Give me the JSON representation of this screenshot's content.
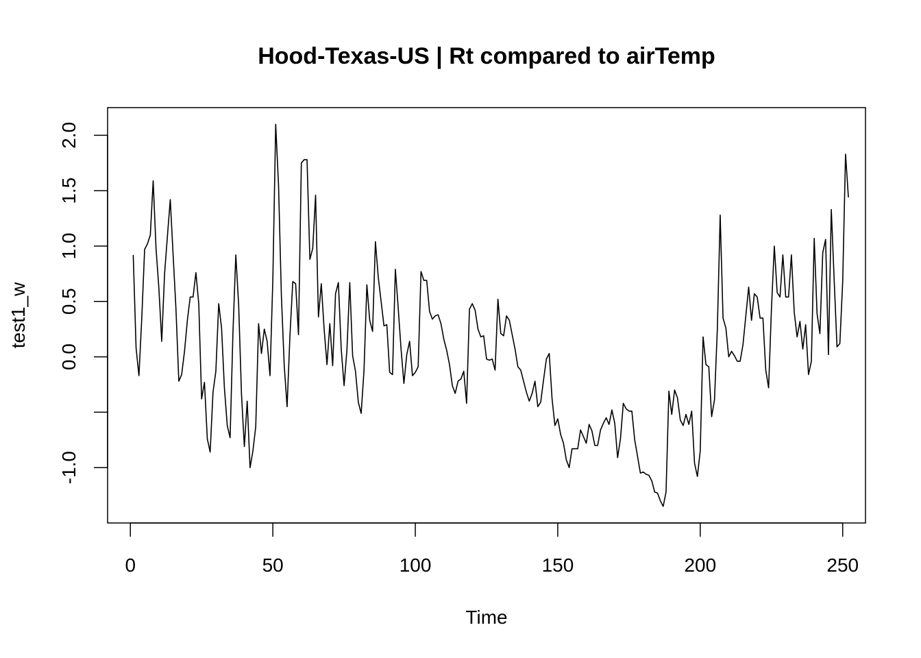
{
  "chart_data": {
    "type": "line",
    "title": "Hood-Texas-US | Rt compared to airTemp",
    "xlabel": "Time",
    "ylabel": "test1_w",
    "xlim": [
      -8,
      258
    ],
    "ylim": [
      -1.5,
      2.25
    ],
    "x_ticks": [
      0,
      50,
      100,
      150,
      200,
      250
    ],
    "x_tick_labels": [
      "0",
      "50",
      "100",
      "150",
      "200",
      "250"
    ],
    "y_ticks": [
      -1.0,
      -0.5,
      0.0,
      0.5,
      1.0,
      1.5,
      2.0
    ],
    "y_tick_labels": [
      "-1.0",
      "",
      "0.0",
      "0.5",
      "1.0",
      "1.5",
      "2.0"
    ],
    "grid": false,
    "legend": "none",
    "series": [
      {
        "color": "#000000",
        "x_start": 1,
        "values": [
          0.92,
          0.08,
          -0.17,
          0.35,
          0.97,
          1.02,
          1.1,
          1.59,
          0.98,
          0.62,
          0.14,
          0.75,
          1.09,
          1.42,
          0.92,
          0.43,
          -0.22,
          -0.16,
          0.05,
          0.33,
          0.54,
          0.54,
          0.76,
          0.48,
          -0.38,
          -0.23,
          -0.74,
          -0.86,
          -0.32,
          -0.13,
          0.48,
          0.26,
          -0.28,
          -0.62,
          -0.73,
          0.22,
          0.92,
          0.47,
          -0.34,
          -0.81,
          -0.4,
          -1.0,
          -0.85,
          -0.63,
          0.3,
          0.03,
          0.25,
          0.14,
          -0.17,
          0.7,
          2.1,
          1.55,
          0.55,
          -0.08,
          -0.45,
          0.19,
          0.68,
          0.66,
          0.2,
          1.75,
          1.78,
          1.78,
          0.88,
          0.98,
          1.46,
          0.36,
          0.66,
          0.25,
          -0.07,
          0.3,
          -0.08,
          0.57,
          0.67,
          0.07,
          -0.26,
          0.06,
          0.67,
          0.01,
          -0.13,
          -0.41,
          -0.51,
          -0.12,
          0.65,
          0.33,
          0.23,
          1.04,
          0.72,
          0.5,
          0.28,
          0.29,
          -0.14,
          -0.16,
          0.79,
          0.44,
          0.07,
          -0.24,
          0.02,
          0.14,
          -0.17,
          -0.14,
          -0.09,
          0.77,
          0.69,
          0.69,
          0.41,
          0.34,
          0.37,
          0.38,
          0.3,
          0.16,
          0.06,
          -0.07,
          -0.26,
          -0.33,
          -0.22,
          -0.2,
          -0.13,
          -0.42,
          0.43,
          0.48,
          0.42,
          0.25,
          0.18,
          0.19,
          -0.02,
          -0.03,
          -0.02,
          -0.12,
          0.52,
          0.21,
          0.19,
          0.37,
          0.33,
          0.2,
          0.07,
          -0.09,
          -0.12,
          -0.22,
          -0.32,
          -0.4,
          -0.33,
          -0.22,
          -0.45,
          -0.41,
          -0.21,
          -0.02,
          0.03,
          -0.38,
          -0.62,
          -0.56,
          -0.7,
          -0.78,
          -0.93,
          -1.0,
          -0.83,
          -0.83,
          -0.83,
          -0.66,
          -0.72,
          -0.78,
          -0.61,
          -0.67,
          -0.8,
          -0.8,
          -0.66,
          -0.6,
          -0.55,
          -0.61,
          -0.48,
          -0.6,
          -0.91,
          -0.74,
          -0.42,
          -0.47,
          -0.49,
          -0.49,
          -0.75,
          -0.9,
          -1.05,
          -1.04,
          -1.06,
          -1.07,
          -1.12,
          -1.22,
          -1.23,
          -1.3,
          -1.35,
          -1.22,
          -0.31,
          -0.52,
          -0.3,
          -0.37,
          -0.57,
          -0.62,
          -0.52,
          -0.61,
          -0.49,
          -0.96,
          -1.08,
          -0.85,
          0.18,
          -0.07,
          -0.09,
          -0.54,
          -0.39,
          0.25,
          1.28,
          0.35,
          0.26,
          0.0,
          0.05,
          0.01,
          -0.04,
          -0.04,
          0.11,
          0.37,
          0.63,
          0.33,
          0.57,
          0.54,
          0.35,
          0.35,
          -0.12,
          -0.28,
          0.44,
          1.0,
          0.58,
          0.54,
          0.92,
          0.54,
          0.54,
          0.92,
          0.4,
          0.18,
          0.32,
          0.07,
          0.29,
          -0.16,
          -0.04,
          1.07,
          0.39,
          0.21,
          0.94,
          1.06,
          0.02,
          1.33,
          0.7,
          0.09,
          0.12,
          0.68,
          1.83,
          1.44
        ]
      }
    ]
  }
}
